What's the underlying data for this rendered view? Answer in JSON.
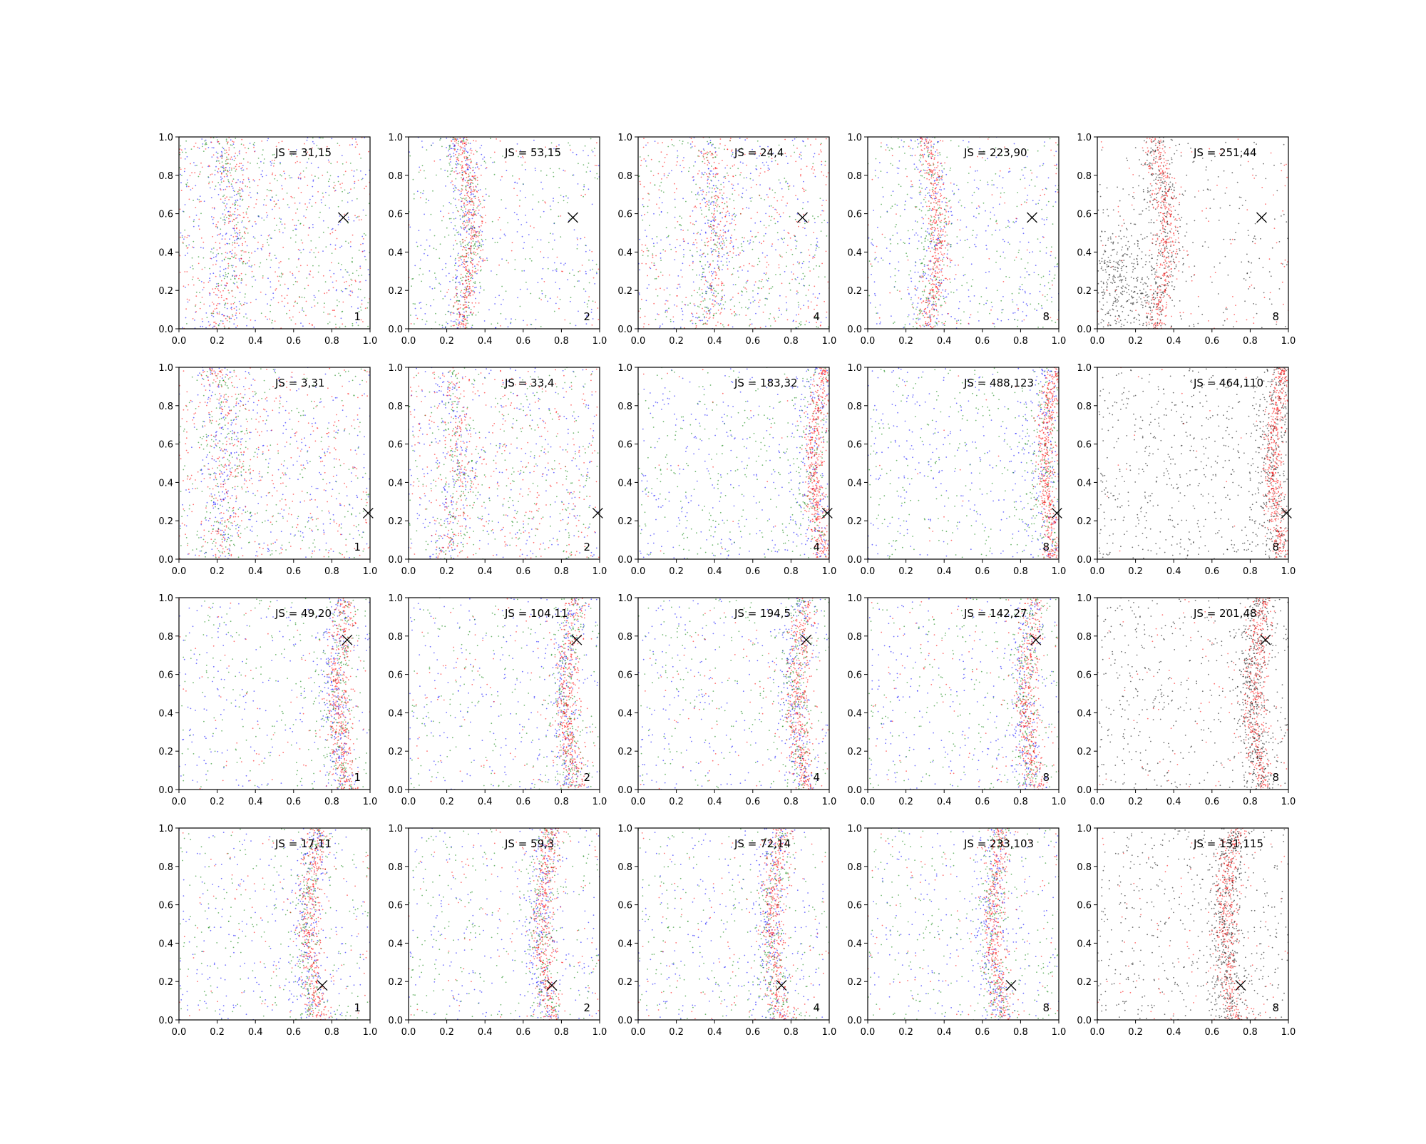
{
  "figure": {
    "rows": 4,
    "cols": 5,
    "marker": "x",
    "colors": {
      "blue": "#0000ff",
      "green": "#008000",
      "red": "#ff0000",
      "black": "#000000"
    }
  },
  "chart_data": [
    {
      "type": "scatter",
      "row": 0,
      "col": 0,
      "js_label": "JS = 31,15",
      "count_label": "1",
      "marker_xy": [
        0.86,
        0.58
      ],
      "series_colors": [
        "blue",
        "green",
        "red"
      ],
      "pattern": "diffuse-left",
      "curve_x": 0.22,
      "xlim": [
        0,
        1
      ],
      "ylim": [
        0,
        1
      ],
      "xticks": [
        "0.0",
        "0.2",
        "0.4",
        "0.6",
        "0.8",
        "1.0"
      ],
      "yticks": [
        "0.0",
        "0.2",
        "0.4",
        "0.6",
        "0.8",
        "1.0"
      ]
    },
    {
      "type": "scatter",
      "row": 0,
      "col": 1,
      "js_label": "JS = 53,15",
      "count_label": "2",
      "marker_xy": [
        0.86,
        0.58
      ],
      "series_colors": [
        "blue",
        "green",
        "red"
      ],
      "pattern": "band-left",
      "curve_x": 0.26,
      "xlim": [
        0,
        1
      ],
      "ylim": [
        0,
        1
      ],
      "xticks": [
        "0.0",
        "0.2",
        "0.4",
        "0.6",
        "0.8",
        "1.0"
      ],
      "yticks": [
        "0.0",
        "0.2",
        "0.4",
        "0.6",
        "0.8",
        "1.0"
      ]
    },
    {
      "type": "scatter",
      "row": 0,
      "col": 2,
      "js_label": "JS = 24,4",
      "count_label": "4",
      "marker_xy": [
        0.86,
        0.58
      ],
      "series_colors": [
        "blue",
        "green",
        "red"
      ],
      "pattern": "diffuse-mid",
      "curve_x": 0.35,
      "xlim": [
        0,
        1
      ],
      "ylim": [
        0,
        1
      ],
      "xticks": [
        "0.0",
        "0.2",
        "0.4",
        "0.6",
        "0.8",
        "1.0"
      ],
      "yticks": [
        "0.0",
        "0.2",
        "0.4",
        "0.6",
        "0.8",
        "1.0"
      ]
    },
    {
      "type": "scatter",
      "row": 0,
      "col": 3,
      "js_label": "JS = 223,90",
      "count_label": "8",
      "marker_xy": [
        0.86,
        0.58
      ],
      "series_colors": [
        "blue",
        "green",
        "red"
      ],
      "pattern": "band-left-strong",
      "curve_x": 0.3,
      "xlim": [
        0,
        1
      ],
      "ylim": [
        0,
        1
      ],
      "xticks": [
        "0.0",
        "0.2",
        "0.4",
        "0.6",
        "0.8",
        "1.0"
      ],
      "yticks": [
        "0.0",
        "0.2",
        "0.4",
        "0.6",
        "0.8",
        "1.0"
      ]
    },
    {
      "type": "scatter",
      "row": 0,
      "col": 4,
      "js_label": "JS = 251,44",
      "count_label": "8",
      "marker_xy": [
        0.86,
        0.58
      ],
      "series_colors": [
        "black",
        "red"
      ],
      "pattern": "band-left-strong",
      "curve_x": 0.3,
      "xlim": [
        0,
        1
      ],
      "ylim": [
        0,
        1
      ],
      "xticks": [
        "0.0",
        "0.2",
        "0.4",
        "0.6",
        "0.8",
        "1.0"
      ],
      "yticks": [
        "0.0",
        "0.2",
        "0.4",
        "0.6",
        "0.8",
        "1.0"
      ]
    },
    {
      "type": "scatter",
      "row": 1,
      "col": 0,
      "js_label": "JS = 3,31",
      "count_label": "1",
      "marker_xy": [
        0.99,
        0.24
      ],
      "series_colors": [
        "blue",
        "green",
        "red"
      ],
      "pattern": "diffuse-left",
      "curve_x": 0.2,
      "xlim": [
        0,
        1
      ],
      "ylim": [
        0,
        1
      ],
      "xticks": [
        "0.0",
        "0.2",
        "0.4",
        "0.6",
        "0.8",
        "1.0"
      ],
      "yticks": [
        "0.0",
        "0.2",
        "0.4",
        "0.6",
        "0.8",
        "1.0"
      ]
    },
    {
      "type": "scatter",
      "row": 1,
      "col": 1,
      "js_label": "JS = 33,4",
      "count_label": "2",
      "marker_xy": [
        0.99,
        0.24
      ],
      "series_colors": [
        "blue",
        "green",
        "red"
      ],
      "pattern": "diffuse-left",
      "curve_x": 0.2,
      "xlim": [
        0,
        1
      ],
      "ylim": [
        0,
        1
      ],
      "xticks": [
        "0.0",
        "0.2",
        "0.4",
        "0.6",
        "0.8",
        "1.0"
      ],
      "yticks": [
        "0.0",
        "0.2",
        "0.4",
        "0.6",
        "0.8",
        "1.0"
      ]
    },
    {
      "type": "scatter",
      "row": 1,
      "col": 2,
      "js_label": "JS = 183,32",
      "count_label": "4",
      "marker_xy": [
        0.99,
        0.24
      ],
      "series_colors": [
        "blue",
        "green",
        "red"
      ],
      "pattern": "edge-right",
      "curve_x": 0.96,
      "xlim": [
        0,
        1
      ],
      "ylim": [
        0,
        1
      ],
      "xticks": [
        "0.0",
        "0.2",
        "0.4",
        "0.6",
        "0.8",
        "1.0"
      ],
      "yticks": [
        "0.0",
        "0.2",
        "0.4",
        "0.6",
        "0.8",
        "1.0"
      ]
    },
    {
      "type": "scatter",
      "row": 1,
      "col": 3,
      "js_label": "JS = 488,123",
      "count_label": "8",
      "marker_xy": [
        0.99,
        0.24
      ],
      "series_colors": [
        "blue",
        "green",
        "red"
      ],
      "pattern": "edge-right",
      "curve_x": 0.97,
      "xlim": [
        0,
        1
      ],
      "ylim": [
        0,
        1
      ],
      "xticks": [
        "0.0",
        "0.2",
        "0.4",
        "0.6",
        "0.8",
        "1.0"
      ],
      "yticks": [
        "0.0",
        "0.2",
        "0.4",
        "0.6",
        "0.8",
        "1.0"
      ]
    },
    {
      "type": "scatter",
      "row": 1,
      "col": 4,
      "js_label": "JS = 464,110",
      "count_label": "8",
      "marker_xy": [
        0.99,
        0.24
      ],
      "series_colors": [
        "black",
        "red"
      ],
      "pattern": "edge-right",
      "curve_x": 0.97,
      "xlim": [
        0,
        1
      ],
      "ylim": [
        0,
        1
      ],
      "xticks": [
        "0.0",
        "0.2",
        "0.4",
        "0.6",
        "0.8",
        "1.0"
      ],
      "yticks": [
        "0.0",
        "0.2",
        "0.4",
        "0.6",
        "0.8",
        "1.0"
      ]
    },
    {
      "type": "scatter",
      "row": 2,
      "col": 0,
      "js_label": "JS = 49,20",
      "count_label": "1",
      "marker_xy": [
        0.88,
        0.78
      ],
      "series_colors": [
        "blue",
        "green",
        "red"
      ],
      "pattern": "band-right",
      "curve_x": 0.87,
      "xlim": [
        0,
        1
      ],
      "ylim": [
        0,
        1
      ],
      "xticks": [
        "0.0",
        "0.2",
        "0.4",
        "0.6",
        "0.8",
        "1.0"
      ],
      "yticks": [
        "0.0",
        "0.2",
        "0.4",
        "0.6",
        "0.8",
        "1.0"
      ]
    },
    {
      "type": "scatter",
      "row": 2,
      "col": 1,
      "js_label": "JS = 104,11",
      "count_label": "2",
      "marker_xy": [
        0.88,
        0.78
      ],
      "series_colors": [
        "blue",
        "green",
        "red"
      ],
      "pattern": "band-right",
      "curve_x": 0.87,
      "xlim": [
        0,
        1
      ],
      "ylim": [
        0,
        1
      ],
      "xticks": [
        "0.0",
        "0.2",
        "0.4",
        "0.6",
        "0.8",
        "1.0"
      ],
      "yticks": [
        "0.0",
        "0.2",
        "0.4",
        "0.6",
        "0.8",
        "1.0"
      ]
    },
    {
      "type": "scatter",
      "row": 2,
      "col": 2,
      "js_label": "JS = 194,5",
      "count_label": "4",
      "marker_xy": [
        0.88,
        0.78
      ],
      "series_colors": [
        "blue",
        "green",
        "red"
      ],
      "pattern": "band-right",
      "curve_x": 0.87,
      "xlim": [
        0,
        1
      ],
      "ylim": [
        0,
        1
      ],
      "xticks": [
        "0.0",
        "0.2",
        "0.4",
        "0.6",
        "0.8",
        "1.0"
      ],
      "yticks": [
        "0.0",
        "0.2",
        "0.4",
        "0.6",
        "0.8",
        "1.0"
      ]
    },
    {
      "type": "scatter",
      "row": 2,
      "col": 3,
      "js_label": "JS = 142,27",
      "count_label": "8",
      "marker_xy": [
        0.88,
        0.78
      ],
      "series_colors": [
        "blue",
        "green",
        "red"
      ],
      "pattern": "band-right",
      "curve_x": 0.87,
      "xlim": [
        0,
        1
      ],
      "ylim": [
        0,
        1
      ],
      "xticks": [
        "0.0",
        "0.2",
        "0.4",
        "0.6",
        "0.8",
        "1.0"
      ],
      "yticks": [
        "0.0",
        "0.2",
        "0.4",
        "0.6",
        "0.8",
        "1.0"
      ]
    },
    {
      "type": "scatter",
      "row": 2,
      "col": 4,
      "js_label": "JS = 201,48",
      "count_label": "8",
      "marker_xy": [
        0.88,
        0.78
      ],
      "series_colors": [
        "black",
        "red"
      ],
      "pattern": "band-right",
      "curve_x": 0.87,
      "xlim": [
        0,
        1
      ],
      "ylim": [
        0,
        1
      ],
      "xticks": [
        "0.0",
        "0.2",
        "0.4",
        "0.6",
        "0.8",
        "1.0"
      ],
      "yticks": [
        "0.0",
        "0.2",
        "0.4",
        "0.6",
        "0.8",
        "1.0"
      ]
    },
    {
      "type": "scatter",
      "row": 3,
      "col": 0,
      "js_label": "JS = 17,11",
      "count_label": "1",
      "marker_xy": [
        0.75,
        0.18
      ],
      "series_colors": [
        "blue",
        "green",
        "red"
      ],
      "pattern": "band-mid-right",
      "curve_x": 0.72,
      "xlim": [
        0,
        1
      ],
      "ylim": [
        0,
        1
      ],
      "xticks": [
        "0.0",
        "0.2",
        "0.4",
        "0.6",
        "0.8",
        "1.0"
      ],
      "yticks": [
        "0.0",
        "0.2",
        "0.4",
        "0.6",
        "0.8",
        "1.0"
      ]
    },
    {
      "type": "scatter",
      "row": 3,
      "col": 1,
      "js_label": "JS = 59,3",
      "count_label": "2",
      "marker_xy": [
        0.75,
        0.18
      ],
      "series_colors": [
        "blue",
        "green",
        "red"
      ],
      "pattern": "band-mid-right",
      "curve_x": 0.74,
      "xlim": [
        0,
        1
      ],
      "ylim": [
        0,
        1
      ],
      "xticks": [
        "0.0",
        "0.2",
        "0.4",
        "0.6",
        "0.8",
        "1.0"
      ],
      "yticks": [
        "0.0",
        "0.2",
        "0.4",
        "0.6",
        "0.8",
        "1.0"
      ]
    },
    {
      "type": "scatter",
      "row": 3,
      "col": 2,
      "js_label": "JS = 72,14",
      "count_label": "4",
      "marker_xy": [
        0.75,
        0.18
      ],
      "series_colors": [
        "blue",
        "green",
        "red"
      ],
      "pattern": "band-mid-right",
      "curve_x": 0.74,
      "xlim": [
        0,
        1
      ],
      "ylim": [
        0,
        1
      ],
      "xticks": [
        "0.0",
        "0.2",
        "0.4",
        "0.6",
        "0.8",
        "1.0"
      ],
      "yticks": [
        "0.0",
        "0.2",
        "0.4",
        "0.6",
        "0.8",
        "1.0"
      ]
    },
    {
      "type": "scatter",
      "row": 3,
      "col": 3,
      "js_label": "JS = 233,103",
      "count_label": "8",
      "marker_xy": [
        0.75,
        0.18
      ],
      "series_colors": [
        "blue",
        "green",
        "red"
      ],
      "pattern": "band-mid-right",
      "curve_x": 0.7,
      "xlim": [
        0,
        1
      ],
      "ylim": [
        0,
        1
      ],
      "xticks": [
        "0.0",
        "0.2",
        "0.4",
        "0.6",
        "0.8",
        "1.0"
      ],
      "yticks": [
        "0.0",
        "0.2",
        "0.4",
        "0.6",
        "0.8",
        "1.0"
      ]
    },
    {
      "type": "scatter",
      "row": 3,
      "col": 4,
      "js_label": "JS = 131,115",
      "count_label": "8",
      "marker_xy": [
        0.75,
        0.18
      ],
      "series_colors": [
        "black",
        "red"
      ],
      "pattern": "band-mid-right",
      "curve_x": 0.72,
      "xlim": [
        0,
        1
      ],
      "ylim": [
        0,
        1
      ],
      "xticks": [
        "0.0",
        "0.2",
        "0.4",
        "0.6",
        "0.8",
        "1.0"
      ],
      "yticks": [
        "0.0",
        "0.2",
        "0.4",
        "0.6",
        "0.8",
        "1.0"
      ]
    }
  ]
}
